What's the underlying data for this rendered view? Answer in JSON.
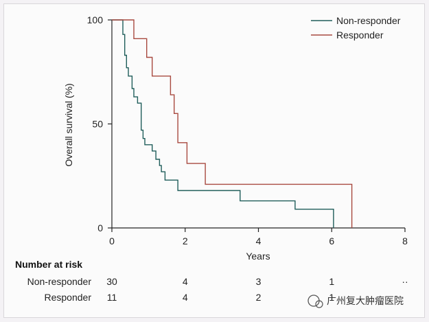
{
  "chart_data": {
    "type": "line",
    "step": true,
    "xlabel": "Years",
    "ylabel": "Overall survival (%)",
    "xlim": [
      0,
      8
    ],
    "ylim": [
      0,
      100
    ],
    "xticks": [
      "0",
      "2",
      "4",
      "6",
      "8"
    ],
    "yticks": [
      "0",
      "50",
      "100"
    ],
    "legend_position": "top-right",
    "series": [
      {
        "name": "Non-responder",
        "color": "#1f5d5a",
        "points": [
          [
            0,
            100
          ],
          [
            0.3,
            100
          ],
          [
            0.3,
            93
          ],
          [
            0.35,
            93
          ],
          [
            0.35,
            83
          ],
          [
            0.4,
            83
          ],
          [
            0.4,
            77
          ],
          [
            0.45,
            77
          ],
          [
            0.45,
            73
          ],
          [
            0.55,
            73
          ],
          [
            0.55,
            67
          ],
          [
            0.6,
            67
          ],
          [
            0.6,
            63
          ],
          [
            0.7,
            63
          ],
          [
            0.7,
            60
          ],
          [
            0.8,
            60
          ],
          [
            0.8,
            47
          ],
          [
            0.85,
            47
          ],
          [
            0.85,
            43
          ],
          [
            0.9,
            43
          ],
          [
            0.9,
            40
          ],
          [
            1.1,
            40
          ],
          [
            1.1,
            37
          ],
          [
            1.2,
            37
          ],
          [
            1.2,
            33
          ],
          [
            1.3,
            33
          ],
          [
            1.3,
            30
          ],
          [
            1.35,
            30
          ],
          [
            1.35,
            27
          ],
          [
            1.45,
            27
          ],
          [
            1.45,
            23
          ],
          [
            1.8,
            23
          ],
          [
            1.8,
            18
          ],
          [
            3.5,
            18
          ],
          [
            3.5,
            13
          ],
          [
            5.0,
            13
          ],
          [
            5.0,
            9
          ],
          [
            6.05,
            9
          ],
          [
            6.05,
            0
          ]
        ]
      },
      {
        "name": "Responder",
        "color": "#a8493f",
        "points": [
          [
            0,
            100
          ],
          [
            0.6,
            100
          ],
          [
            0.6,
            91
          ],
          [
            0.95,
            91
          ],
          [
            0.95,
            82
          ],
          [
            1.1,
            82
          ],
          [
            1.1,
            73
          ],
          [
            1.6,
            73
          ],
          [
            1.6,
            64
          ],
          [
            1.7,
            64
          ],
          [
            1.7,
            55
          ],
          [
            1.8,
            55
          ],
          [
            1.8,
            41
          ],
          [
            2.05,
            41
          ],
          [
            2.05,
            31
          ],
          [
            2.55,
            31
          ],
          [
            2.55,
            21
          ],
          [
            6.55,
            21
          ],
          [
            6.55,
            0
          ]
        ]
      }
    ],
    "number_at_risk": {
      "title": "Number at risk",
      "rows": [
        {
          "label": "Non-responder",
          "values": [
            "30",
            "4",
            "3",
            "1",
            "··"
          ]
        },
        {
          "label": "Responder",
          "values": [
            "11",
            "4",
            "2",
            "1",
            ""
          ]
        }
      ]
    }
  },
  "watermark": "广州复大肿瘤医院"
}
